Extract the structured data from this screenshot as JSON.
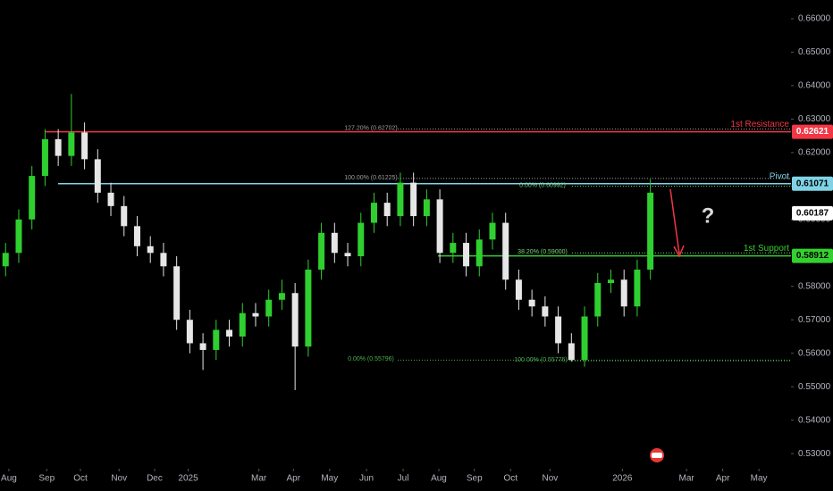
{
  "chart_data": {
    "type": "candlestick",
    "x": [
      -2,
      6,
      14,
      22,
      30,
      38,
      46,
      54,
      62,
      70,
      78,
      86,
      94,
      102,
      110,
      118,
      126,
      134,
      142,
      150,
      158,
      166,
      174,
      182,
      190,
      198,
      206,
      214,
      222,
      230,
      238,
      246,
      254,
      262,
      270,
      278,
      286,
      294,
      302,
      310,
      318,
      326,
      334,
      342,
      350,
      358,
      366,
      374,
      382,
      390
    ],
    "open": [
      0.586,
      0.59,
      0.6,
      0.613,
      0.624,
      0.619,
      0.626,
      0.618,
      0.608,
      0.604,
      0.598,
      0.592,
      0.59,
      0.586,
      0.57,
      0.563,
      0.561,
      0.567,
      0.565,
      0.572,
      0.571,
      0.576,
      0.578,
      0.562,
      0.585,
      0.596,
      0.59,
      0.589,
      0.599,
      0.605,
      0.601,
      0.611,
      0.601,
      0.606,
      0.59,
      0.593,
      0.586,
      0.594,
      0.599,
      0.582,
      0.576,
      0.574,
      0.571,
      0.563,
      0.558,
      0.571,
      0.581,
      0.582,
      0.574,
      0.585
    ],
    "high": [
      0.593,
      0.603,
      0.616,
      0.627,
      0.627,
      0.6375,
      0.629,
      0.621,
      0.611,
      0.607,
      0.601,
      0.595,
      0.593,
      0.589,
      0.573,
      0.566,
      0.57,
      0.57,
      0.575,
      0.575,
      0.579,
      0.582,
      0.581,
      0.588,
      0.599,
      0.599,
      0.593,
      0.602,
      0.608,
      0.608,
      0.614,
      0.614,
      0.609,
      0.609,
      0.596,
      0.596,
      0.597,
      0.602,
      0.602,
      0.585,
      0.579,
      0.577,
      0.574,
      0.566,
      0.574,
      0.584,
      0.585,
      0.585,
      0.588,
      0.612
    ],
    "low": [
      0.583,
      0.587,
      0.597,
      0.61,
      0.616,
      0.616,
      0.615,
      0.605,
      0.601,
      0.595,
      0.589,
      0.587,
      0.583,
      0.567,
      0.56,
      0.555,
      0.558,
      0.562,
      0.562,
      0.568,
      0.568,
      0.573,
      0.549,
      0.559,
      0.582,
      0.587,
      0.586,
      0.586,
      0.596,
      0.598,
      0.598,
      0.598,
      0.598,
      0.587,
      0.587,
      0.583,
      0.583,
      0.591,
      0.579,
      0.573,
      0.571,
      0.568,
      0.56,
      0.5575,
      0.556,
      0.568,
      0.578,
      0.571,
      0.571,
      0.582
    ],
    "close": [
      0.59,
      0.6,
      0.613,
      0.624,
      0.619,
      0.626,
      0.618,
      0.608,
      0.604,
      0.598,
      0.592,
      0.59,
      0.586,
      0.57,
      0.563,
      0.561,
      0.567,
      0.565,
      0.572,
      0.571,
      0.576,
      0.578,
      0.562,
      0.585,
      0.596,
      0.59,
      0.589,
      0.599,
      0.605,
      0.601,
      0.611,
      0.601,
      0.606,
      0.59,
      0.593,
      0.586,
      0.594,
      0.599,
      0.582,
      0.576,
      0.574,
      0.571,
      0.563,
      0.558,
      0.571,
      0.581,
      0.582,
      0.574,
      0.585,
      0.608
    ],
    "up_color": "#2fcf2f",
    "down_color": "#e6e6e6",
    "xlim": [
      -5.4,
      475.5
    ],
    "xticks": [
      {
        "value": 0,
        "label": "Aug"
      },
      {
        "value": 23,
        "label": "Sep"
      },
      {
        "value": 43.5,
        "label": "Oct"
      },
      {
        "value": 67,
        "label": "Nov"
      },
      {
        "value": 88.6,
        "label": "Dec"
      },
      {
        "value": 109,
        "label": "2025"
      },
      {
        "value": 152,
        "label": "Mar"
      },
      {
        "value": 173,
        "label": "Apr"
      },
      {
        "value": 195,
        "label": "May"
      },
      {
        "value": 217.4,
        "label": "Jun"
      },
      {
        "value": 239.7,
        "label": "Jul"
      },
      {
        "value": 261.4,
        "label": "Aug"
      },
      {
        "value": 283,
        "label": "Sep"
      },
      {
        "value": 305,
        "label": "Oct"
      },
      {
        "value": 329,
        "label": "Nov"
      },
      {
        "value": 373,
        "label": "2026"
      },
      {
        "value": 412,
        "label": "Mar"
      },
      {
        "value": 434,
        "label": "Apr"
      },
      {
        "value": 456,
        "label": "May"
      }
    ],
    "ylim": [
      0.5255,
      0.6656
    ],
    "yticks": [
      {
        "value": 0.53,
        "label": "0.53000"
      },
      {
        "value": 0.54,
        "label": "0.54000"
      },
      {
        "value": 0.55,
        "label": "0.55000"
      },
      {
        "value": 0.56,
        "label": "0.56000"
      },
      {
        "value": 0.57,
        "label": "0.57000"
      },
      {
        "value": 0.58,
        "label": "0.58000"
      },
      {
        "value": 0.59,
        "label": "0.59000"
      },
      {
        "value": 0.6,
        "label": "0.60000"
      },
      {
        "value": 0.61,
        "label": "0.61000"
      },
      {
        "value": 0.62,
        "label": "0.62000"
      },
      {
        "value": 0.63,
        "label": "0.63000"
      },
      {
        "value": 0.64,
        "label": "0.64000"
      },
      {
        "value": 0.65,
        "label": "0.65000"
      },
      {
        "value": 0.66,
        "label": "0.66000"
      }
    ],
    "levels": [
      {
        "name": "1st Resistance",
        "value": 0.62621,
        "label": "0.62621",
        "color": "#f23645"
      },
      {
        "name": "Pivot",
        "value": 0.61071,
        "label": "0.61071",
        "color": "#7fd3e6"
      },
      {
        "name": "1st Support",
        "value": 0.58912,
        "label": "0.58912",
        "color": "#34d02f"
      }
    ],
    "current_price": {
      "value": 0.60187,
      "label": "0.60187"
    },
    "fib_levels": [
      {
        "value": 0.62702,
        "label": "127.20% (0.62702)"
      },
      {
        "value": 0.61225,
        "label": "100.00% (0.61225)"
      },
      {
        "value": 0.60992,
        "label": "0.00% (0.60992)"
      },
      {
        "value": 0.59,
        "label": "38.20% (0.59000)"
      },
      {
        "value": 0.55796,
        "label": "0.00% (0.55796)"
      },
      {
        "value": 0.55776,
        "label": "100.00% (0.55776)"
      }
    ],
    "annotation": "?"
  }
}
